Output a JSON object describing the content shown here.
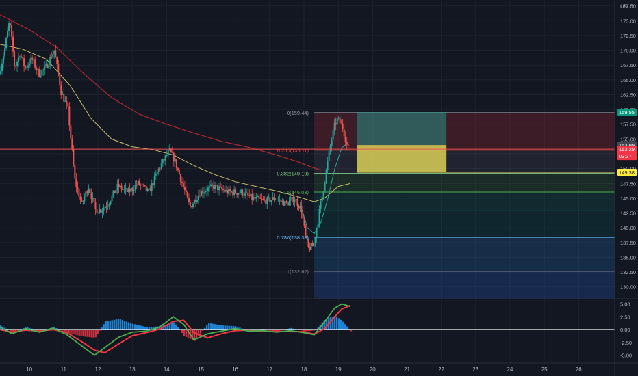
{
  "currency_label": "USDT",
  "colors": {
    "background": "#131722",
    "up": "#26a69a",
    "down": "#ef5350",
    "grid": "#1e222d",
    "axis_text": "#b2b5be",
    "price_line": "#ef5350",
    "fib_zero": "#9598a1",
    "fib_0236": "#f23645",
    "fib_0382": "#81c784",
    "fib_05": "#4caf50",
    "fib_0618": "#009688",
    "fib_0786": "#64b5f6",
    "fib_1": "#787b86",
    "ma_fast": "#26a69a",
    "ma_mid": "#c9c06a",
    "ma_slow": "#b22833",
    "osc_line_a": "#4caf50",
    "osc_line_b": "#f23645",
    "osc_hist": "#2196f3"
  },
  "chart_data": {
    "type": "candlestick",
    "price_axis": {
      "min": 128,
      "max": 178.5,
      "ticks": [
        "177.50",
        "175.00",
        "172.50",
        "170.00",
        "167.50",
        "165.00",
        "162.50",
        "160.00",
        "157.50",
        "155.00",
        "152.50",
        "150.00",
        "147.50",
        "145.00",
        "142.50",
        "140.00",
        "137.50",
        "135.00",
        "132.50",
        "130.00"
      ]
    },
    "x_axis": {
      "day_min": 9.15,
      "day_max": 27.05,
      "ticks": [
        "10",
        "11",
        "12",
        "13",
        "14",
        "15",
        "16",
        "17",
        "18",
        "19",
        "20",
        "21",
        "22",
        "23",
        "24",
        "25",
        "26"
      ]
    },
    "price_path": [
      [
        9.15,
        166
      ],
      [
        9.3,
        170
      ],
      [
        9.45,
        175
      ],
      [
        9.6,
        167
      ],
      [
        9.75,
        169.5
      ],
      [
        9.9,
        167
      ],
      [
        10.1,
        168.5
      ],
      [
        10.3,
        166
      ],
      [
        10.5,
        167
      ],
      [
        10.75,
        170
      ],
      [
        10.95,
        163
      ],
      [
        11.15,
        160
      ],
      [
        11.35,
        148
      ],
      [
        11.55,
        144
      ],
      [
        11.75,
        147
      ],
      [
        11.95,
        143
      ],
      [
        12.1,
        143
      ],
      [
        12.3,
        144
      ],
      [
        12.6,
        147
      ],
      [
        12.9,
        146
      ],
      [
        13.2,
        147.5
      ],
      [
        13.5,
        146
      ],
      [
        13.8,
        150
      ],
      [
        14.1,
        153
      ],
      [
        14.25,
        151.5
      ],
      [
        14.45,
        148
      ],
      [
        14.7,
        143.5
      ],
      [
        15.0,
        146
      ],
      [
        15.4,
        147
      ],
      [
        15.8,
        146
      ],
      [
        16.2,
        146
      ],
      [
        16.5,
        145
      ],
      [
        16.9,
        144.5
      ],
      [
        17.2,
        145
      ],
      [
        17.5,
        144
      ],
      [
        17.75,
        145
      ],
      [
        17.95,
        143
      ],
      [
        18.05,
        139
      ],
      [
        18.15,
        136.5
      ],
      [
        18.3,
        137
      ],
      [
        18.45,
        142
      ],
      [
        18.6,
        147
      ],
      [
        18.75,
        152.5
      ],
      [
        18.9,
        157
      ],
      [
        19.0,
        158.5
      ],
      [
        19.15,
        157
      ],
      [
        19.3,
        153.3
      ]
    ],
    "ma_fast": [
      [
        17.95,
        143
      ],
      [
        18.1,
        140
      ],
      [
        18.3,
        139
      ],
      [
        18.5,
        141
      ],
      [
        18.7,
        145
      ],
      [
        18.9,
        150
      ],
      [
        19.1,
        153.5
      ],
      [
        19.3,
        154.5
      ]
    ],
    "ma_mid": [
      [
        9.15,
        171
      ],
      [
        9.8,
        170.2
      ],
      [
        10.5,
        168.5
      ],
      [
        11.2,
        164
      ],
      [
        11.8,
        158.5
      ],
      [
        12.4,
        155
      ],
      [
        13.0,
        153.7
      ],
      [
        13.6,
        153.2
      ],
      [
        14.2,
        152.3
      ],
      [
        14.8,
        150.5
      ],
      [
        15.4,
        149
      ],
      [
        16.0,
        147.8
      ],
      [
        16.6,
        147
      ],
      [
        17.2,
        146.2
      ],
      [
        17.8,
        145.3
      ],
      [
        18.3,
        144.4
      ],
      [
        18.6,
        145
      ],
      [
        19.0,
        147
      ],
      [
        19.35,
        147.5
      ]
    ],
    "ma_slow": [
      [
        9.15,
        176
      ],
      [
        10.0,
        173.5
      ],
      [
        10.8,
        170.5
      ],
      [
        11.6,
        166
      ],
      [
        12.4,
        162
      ],
      [
        13.2,
        159.2
      ],
      [
        14.0,
        157.5
      ],
      [
        14.8,
        156
      ],
      [
        15.6,
        154.6
      ],
      [
        16.4,
        153.6
      ],
      [
        17.2,
        152.3
      ],
      [
        17.8,
        151.2
      ],
      [
        18.2,
        150.3
      ],
      [
        18.5,
        149.7
      ]
    ],
    "fibonacci": {
      "from_day": 18.3,
      "levels": [
        {
          "ratio": 0,
          "label": "0(159.44)",
          "price": 159.44,
          "color_key": "fib_zero"
        },
        {
          "ratio": 0.236,
          "label": "0.236(153.11)",
          "price": 153.11,
          "color_key": "fib_0236"
        },
        {
          "ratio": 0.382,
          "label": "0.382(149.19)",
          "price": 149.19,
          "color_key": "fib_0382"
        },
        {
          "ratio": 0.5,
          "label": "0.5(146.03)",
          "price": 146.03,
          "color_key": "fib_05"
        },
        {
          "ratio": 0.618,
          "label": "",
          "price": 142.87,
          "color_key": "fib_0618"
        },
        {
          "ratio": 0.786,
          "label": "0.786(138.38)",
          "price": 138.38,
          "color_key": "fib_0786"
        },
        {
          "ratio": 1,
          "label": "1(132.62)",
          "price": 132.62,
          "color_key": "fib_1"
        }
      ]
    },
    "position_box": {
      "day_start": 19.55,
      "day_end": 22.15,
      "top": 159.55,
      "entry_high": 153.99,
      "entry_low": 149.38
    },
    "horizontal_line": 153.29,
    "price_labels": [
      {
        "text": "159.55",
        "price": 159.55,
        "bg": "#089981",
        "fg": "#ffffff"
      },
      {
        "text": "153.99",
        "price": 153.99,
        "bg": "#434651",
        "fg": "#ffffff"
      },
      {
        "text": "153.29",
        "price": 153.29,
        "bg": "#f23645",
        "fg": "#ffffff",
        "sub": "03:37"
      },
      {
        "text": "149.38",
        "price": 149.38,
        "bg": "#ffeb3b",
        "fg": "#131722"
      }
    ],
    "oscillator": {
      "min": -6.5,
      "max": 6.0,
      "zero": 0,
      "ticks": [
        "5.00",
        "2.50",
        "0.00",
        "-2.50",
        "-5.00"
      ],
      "line_a": [
        [
          9.15,
          0.5
        ],
        [
          9.5,
          -0.8
        ],
        [
          9.9,
          0.2
        ],
        [
          10.3,
          -0.5
        ],
        [
          10.7,
          0.3
        ],
        [
          11.1,
          -1.0
        ],
        [
          11.5,
          -3.0
        ],
        [
          11.9,
          -5.0
        ],
        [
          12.2,
          -3.5
        ],
        [
          12.6,
          -1.5
        ],
        [
          13.0,
          -0.5
        ],
        [
          13.4,
          -0.3
        ],
        [
          13.8,
          0.5
        ],
        [
          14.2,
          2.5
        ],
        [
          14.5,
          1.0
        ],
        [
          14.8,
          -2.0
        ],
        [
          15.2,
          -0.8
        ],
        [
          15.6,
          -0.3
        ],
        [
          16.0,
          0.2
        ],
        [
          16.4,
          -0.3
        ],
        [
          16.8,
          -0.2
        ],
        [
          17.2,
          -0.5
        ],
        [
          17.6,
          -0.2
        ],
        [
          18.0,
          -0.6
        ],
        [
          18.3,
          -1.0
        ],
        [
          18.6,
          1.5
        ],
        [
          18.9,
          4.2
        ],
        [
          19.1,
          5.0
        ],
        [
          19.35,
          4.5
        ]
      ],
      "line_b": [
        [
          9.15,
          0.0
        ],
        [
          9.5,
          -0.5
        ],
        [
          9.9,
          -0.1
        ],
        [
          10.3,
          -0.3
        ],
        [
          10.7,
          0.0
        ],
        [
          11.1,
          -0.6
        ],
        [
          11.5,
          -2.2
        ],
        [
          11.9,
          -4.0
        ],
        [
          12.2,
          -4.5
        ],
        [
          12.6,
          -2.8
        ],
        [
          13.0,
          -1.2
        ],
        [
          13.4,
          -0.6
        ],
        [
          13.8,
          0.1
        ],
        [
          14.2,
          1.6
        ],
        [
          14.5,
          1.8
        ],
        [
          14.8,
          -0.6
        ],
        [
          15.2,
          -1.6
        ],
        [
          15.6,
          -0.8
        ],
        [
          16.0,
          -0.2
        ],
        [
          16.4,
          -0.1
        ],
        [
          16.8,
          -0.3
        ],
        [
          17.2,
          -0.3
        ],
        [
          17.6,
          -0.4
        ],
        [
          18.0,
          -0.4
        ],
        [
          18.3,
          -0.9
        ],
        [
          18.6,
          0.2
        ],
        [
          18.9,
          2.5
        ],
        [
          19.1,
          4.0
        ],
        [
          19.35,
          4.7
        ]
      ]
    }
  }
}
